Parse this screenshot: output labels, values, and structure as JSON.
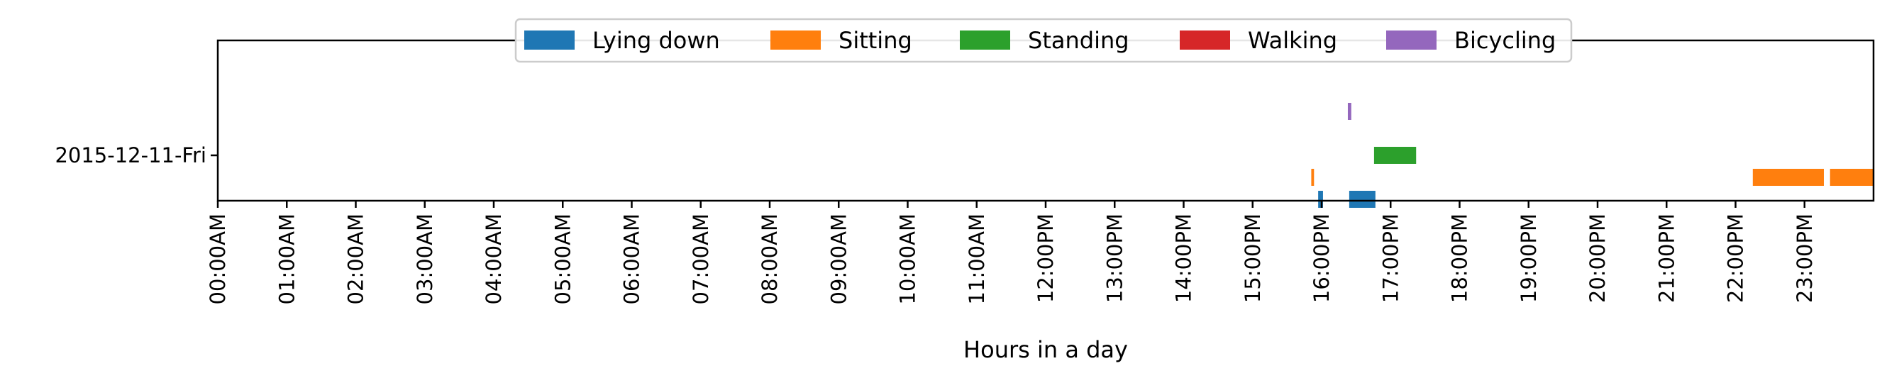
{
  "chart_data": {
    "type": "timeline",
    "title": "",
    "xlabel": "Hours in a day",
    "ylabel": "",
    "xlim": [
      0,
      24
    ],
    "x_ticks": [
      "00:00AM",
      "01:00AM",
      "02:00AM",
      "03:00AM",
      "04:00AM",
      "05:00AM",
      "06:00AM",
      "07:00AM",
      "08:00AM",
      "09:00AM",
      "10:00AM",
      "11:00AM",
      "12:00PM",
      "13:00PM",
      "14:00PM",
      "15:00PM",
      "16:00PM",
      "17:00PM",
      "18:00PM",
      "19:00PM",
      "20:00PM",
      "21:00PM",
      "22:00PM",
      "23:00PM"
    ],
    "y_categories": [
      "2015-12-11-Fri"
    ],
    "legend_position": "top-center",
    "grid": false,
    "series": [
      {
        "name": "Lying down",
        "color": "#1f77b4",
        "lane": -2,
        "intervals": [
          [
            15.95,
            16.02
          ],
          [
            16.4,
            16.78
          ]
        ]
      },
      {
        "name": "Sitting",
        "color": "#ff7f0e",
        "lane": -1,
        "intervals": [
          [
            15.85,
            15.89
          ],
          [
            22.25,
            23.28
          ],
          [
            23.37,
            24.0
          ]
        ]
      },
      {
        "name": "Standing",
        "color": "#2ca02c",
        "lane": 0,
        "intervals": [
          [
            16.76,
            17.37
          ]
        ]
      },
      {
        "name": "Walking",
        "color": "#d62728",
        "lane": 1,
        "intervals": []
      },
      {
        "name": "Bicycling",
        "color": "#9467bd",
        "lane": 2,
        "intervals": [
          [
            16.38,
            16.43
          ]
        ]
      }
    ]
  }
}
